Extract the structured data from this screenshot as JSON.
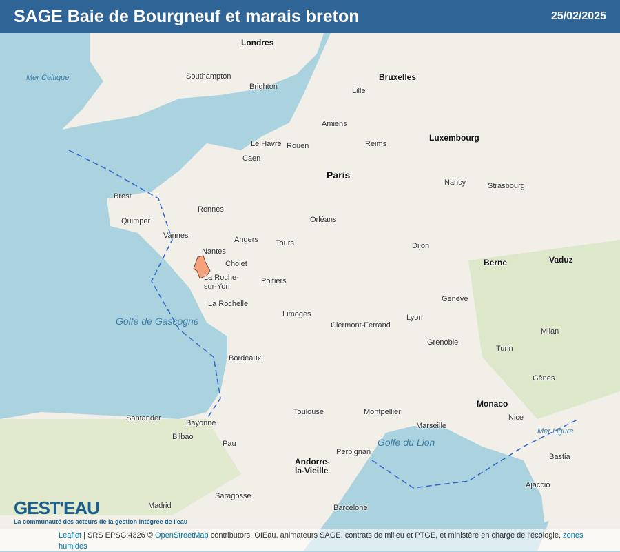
{
  "header": {
    "title": "SAGE Baie de Bourgneuf et marais breton",
    "date": "25/02/2025"
  },
  "map": {
    "colors": {
      "sea": "#aad3df",
      "land": "#f2efe9",
      "forest": "#cfe3b6",
      "sage_area": "#f4a27c",
      "sage_border": "#7a4a35",
      "borders": "#3366cc",
      "header": "#2f6496"
    },
    "capitals": [
      "Londres",
      "Bruxelles",
      "Paris",
      "Luxembourg",
      "Berne",
      "Vaduz",
      "Monaco",
      "Andorre-la-Vieille"
    ],
    "cities": [
      "Nantes",
      "Angers",
      "Cholet",
      "La Roche-sur-Yon",
      "Rennes",
      "Brest",
      "Quimper",
      "Vannes",
      "Caen",
      "Le Havre",
      "Rouen",
      "Amiens",
      "Lille",
      "Reims",
      "Orléans",
      "Tours",
      "Poitiers",
      "Limoges",
      "Bordeaux",
      "Toulouse",
      "Montpellier",
      "Marseille",
      "Lyon",
      "Dijon",
      "Strasbourg",
      "Nancy",
      "Clermont-Ferrand",
      "Grenoble",
      "Nice",
      "Perpignan",
      "La Rochelle",
      "Bayonne",
      "Pau",
      "Bilbao",
      "Santander",
      "Barcelone",
      "Saragosse",
      "Madrid",
      "Southampton",
      "Brighton",
      "Genève",
      "Turin",
      "Milan",
      "Gênes",
      "Ajaccio",
      "Bastia"
    ],
    "seas": [
      "Golfe de Gascogne",
      "Golfe du Lion",
      "Mer Celtique",
      "Mer Ligure"
    ]
  },
  "logo": {
    "name": "GEST'EAU",
    "tagline": "La communauté des acteurs de la gestion intégrée de l'eau"
  },
  "attribution": {
    "leaflet": "Leaflet",
    "srs": "| SRS EPSG:4326 ©",
    "osm": "OpenStreetMap",
    "rest": " contributors, OIEau, animateurs SAGE, contrats de milieu et PTGE, et ministère en charge de l'écologie,",
    "zones": "zones humides"
  }
}
